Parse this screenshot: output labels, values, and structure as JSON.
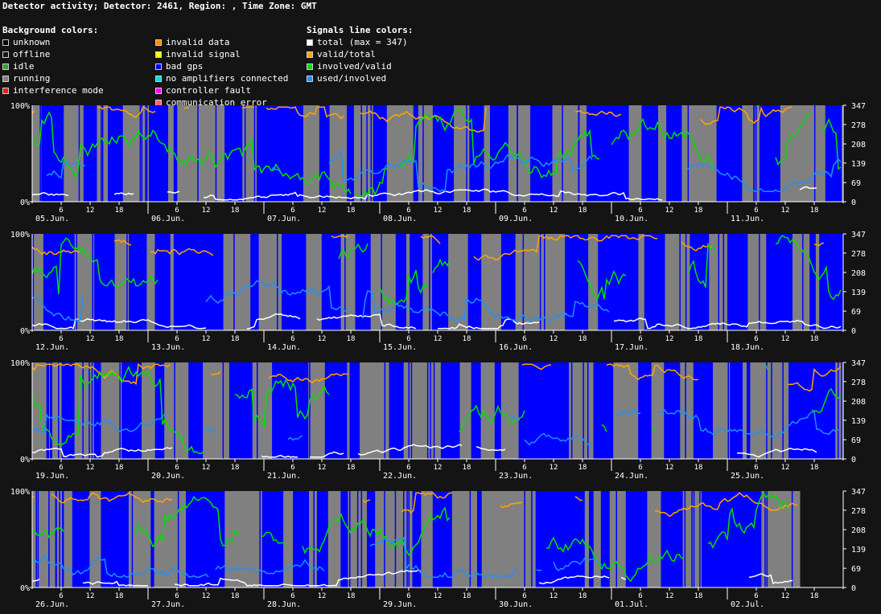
{
  "title": "Detector activity; Detector: 2461, Region: , Time Zone: GMT",
  "legend": {
    "background_header": "Background colors:",
    "signals_header": "Signals line colors:",
    "col1": [
      {
        "label": "unknown",
        "color": "#000000"
      },
      {
        "label": "offline",
        "color": "#141414"
      },
      {
        "label": "idle",
        "color": "#2ca02c"
      },
      {
        "label": "running",
        "color": "#808080"
      },
      {
        "label": "interference mode",
        "color": "#e02020"
      }
    ],
    "col2": [
      {
        "label": "invalid data",
        "color": "#ff8c00"
      },
      {
        "label": "invalid signal",
        "color": "#ffff00"
      },
      {
        "label": "bad gps",
        "color": "#0000ff"
      },
      {
        "label": "no amplifiers connected",
        "color": "#00e0e0"
      },
      {
        "label": "controller fault",
        "color": "#ff00ff"
      },
      {
        "label": "communication error",
        "color": "#ff6080"
      }
    ],
    "col3": [
      {
        "label": "total (max = 347)",
        "color": "#ffffff"
      },
      {
        "label": "valid/total",
        "color": "#ffa500"
      },
      {
        "label": "involved/valid",
        "color": "#00e000"
      },
      {
        "label": "used/involved",
        "color": "#1e90ff"
      }
    ]
  },
  "chart_data": {
    "type": "line",
    "max_total": 347,
    "y_left_ticks": [
      "0%",
      "100%"
    ],
    "y_right_ticks": [
      0,
      69,
      139,
      208,
      278,
      347
    ],
    "hour_ticks": [
      6,
      12,
      18
    ],
    "colors": {
      "running": "#808080",
      "bad_gps": "#0000ff",
      "offline": "#141414",
      "total": "#ffffff",
      "valid_total": "#ffa500",
      "involved_valid": "#00e000",
      "used_involved": "#1e90ff"
    },
    "panels": [
      {
        "days": [
          "05.Jun.",
          "06.Jun.",
          "07.Jun.",
          "08.Jun.",
          "09.Jun.",
          "10.Jun.",
          "11.Jun."
        ],
        "seed": 11,
        "start_offline_h": 0,
        "end_offline_h": 0
      },
      {
        "days": [
          "12.Jun.",
          "13.Jun.",
          "14.Jun.",
          "15.Jun.",
          "16.Jun.",
          "17.Jun.",
          "18.Jun."
        ],
        "seed": 23,
        "start_offline_h": 0,
        "end_offline_h": 0
      },
      {
        "days": [
          "19.Jun.",
          "20.Jun.",
          "21.Jun.",
          "22.Jun.",
          "23.Jun.",
          "24.Jun.",
          "25.Jun."
        ],
        "seed": 37,
        "start_offline_h": 0,
        "end_offline_h": 0
      },
      {
        "days": [
          "26.Jun.",
          "27.Jun.",
          "28.Jun.",
          "29.Jun.",
          "30.Jun.",
          "01.Jul.",
          "02.Jul."
        ],
        "seed": 51,
        "start_offline_h": 0,
        "end_offline_h": 9
      }
    ]
  }
}
